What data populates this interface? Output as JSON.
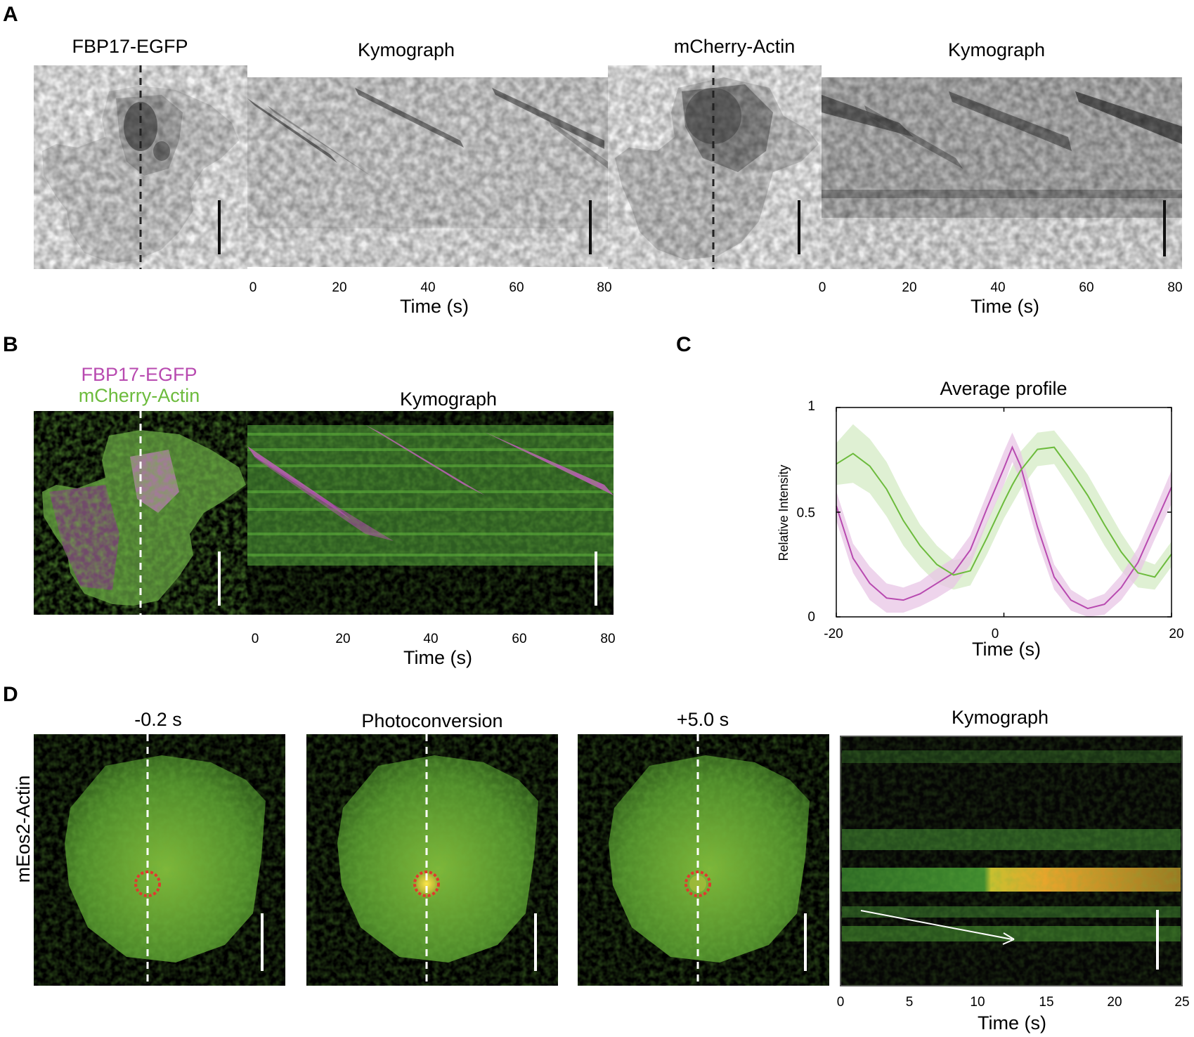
{
  "panel_a": {
    "letter": "A",
    "left_image_title": "FBP17-EGFP",
    "kymo1_title": "Kymograph",
    "right_image_title": "mCherry-Actin",
    "kymo2_title": "Kymograph",
    "time_ticks": [
      "0",
      "20",
      "40",
      "60",
      "80"
    ],
    "time_label": "Time (s)"
  },
  "panel_b": {
    "letter": "B",
    "legend_line1": "FBP17-EGFP",
    "legend_line2": "mCherry-Actin",
    "kymo_title": "Kymograph",
    "time_ticks": [
      "0",
      "20",
      "40",
      "60",
      "80"
    ],
    "time_label": "Time (s)"
  },
  "panel_c": {
    "letter": "C",
    "colors": {
      "fbp17": "#b84ab0",
      "fbp17_band": "#e8c6e6",
      "actin": "#6cbb3c",
      "actin_band": "#d4ebc4"
    }
  },
  "panel_d": {
    "letter": "D",
    "row_label": "mEos2-Actin",
    "frame1_title": "-0.2 s",
    "frame2_title": "Photoconversion",
    "frame3_title": "+5.0 s",
    "kymo_title": "Kymograph",
    "time_ticks": [
      "0",
      "5",
      "10",
      "15",
      "20",
      "25"
    ],
    "time_label": "Time (s)"
  },
  "chart_data": {
    "type": "line",
    "title": "Average profile",
    "xlabel": "Time (s)",
    "ylabel": "Relative Intensity",
    "xlim": [
      -20,
      20
    ],
    "ylim": [
      0,
      1
    ],
    "xticks": [
      "-20",
      "0",
      "20"
    ],
    "yticks": [
      "0",
      "0.5",
      "1"
    ],
    "x": [
      -20,
      -18,
      -16,
      -14,
      -12,
      -10,
      -8,
      -6,
      -4,
      -2,
      0,
      1,
      2,
      4,
      6,
      8,
      10,
      12,
      14,
      16,
      18,
      20
    ],
    "series": [
      {
        "name": "FBP17-EGFP",
        "values": [
          0.53,
          0.28,
          0.16,
          0.09,
          0.08,
          0.11,
          0.16,
          0.21,
          0.32,
          0.52,
          0.71,
          0.81,
          0.72,
          0.43,
          0.19,
          0.08,
          0.04,
          0.06,
          0.14,
          0.26,
          0.44,
          0.62
        ],
        "band": [
          0.07,
          0.07,
          0.08,
          0.07,
          0.06,
          0.06,
          0.07,
          0.07,
          0.07,
          0.07,
          0.08,
          0.07,
          0.07,
          0.07,
          0.06,
          0.05,
          0.04,
          0.05,
          0.06,
          0.07,
          0.07,
          0.08
        ]
      },
      {
        "name": "mCherry-Actin",
        "values": [
          0.73,
          0.78,
          0.72,
          0.61,
          0.46,
          0.34,
          0.25,
          0.2,
          0.22,
          0.38,
          0.55,
          0.63,
          0.7,
          0.8,
          0.81,
          0.7,
          0.58,
          0.44,
          0.31,
          0.21,
          0.19,
          0.3
        ],
        "band": [
          0.1,
          0.14,
          0.13,
          0.13,
          0.12,
          0.1,
          0.09,
          0.07,
          0.07,
          0.08,
          0.08,
          0.09,
          0.09,
          0.08,
          0.08,
          0.09,
          0.1,
          0.1,
          0.09,
          0.07,
          0.06,
          0.06
        ]
      }
    ]
  }
}
